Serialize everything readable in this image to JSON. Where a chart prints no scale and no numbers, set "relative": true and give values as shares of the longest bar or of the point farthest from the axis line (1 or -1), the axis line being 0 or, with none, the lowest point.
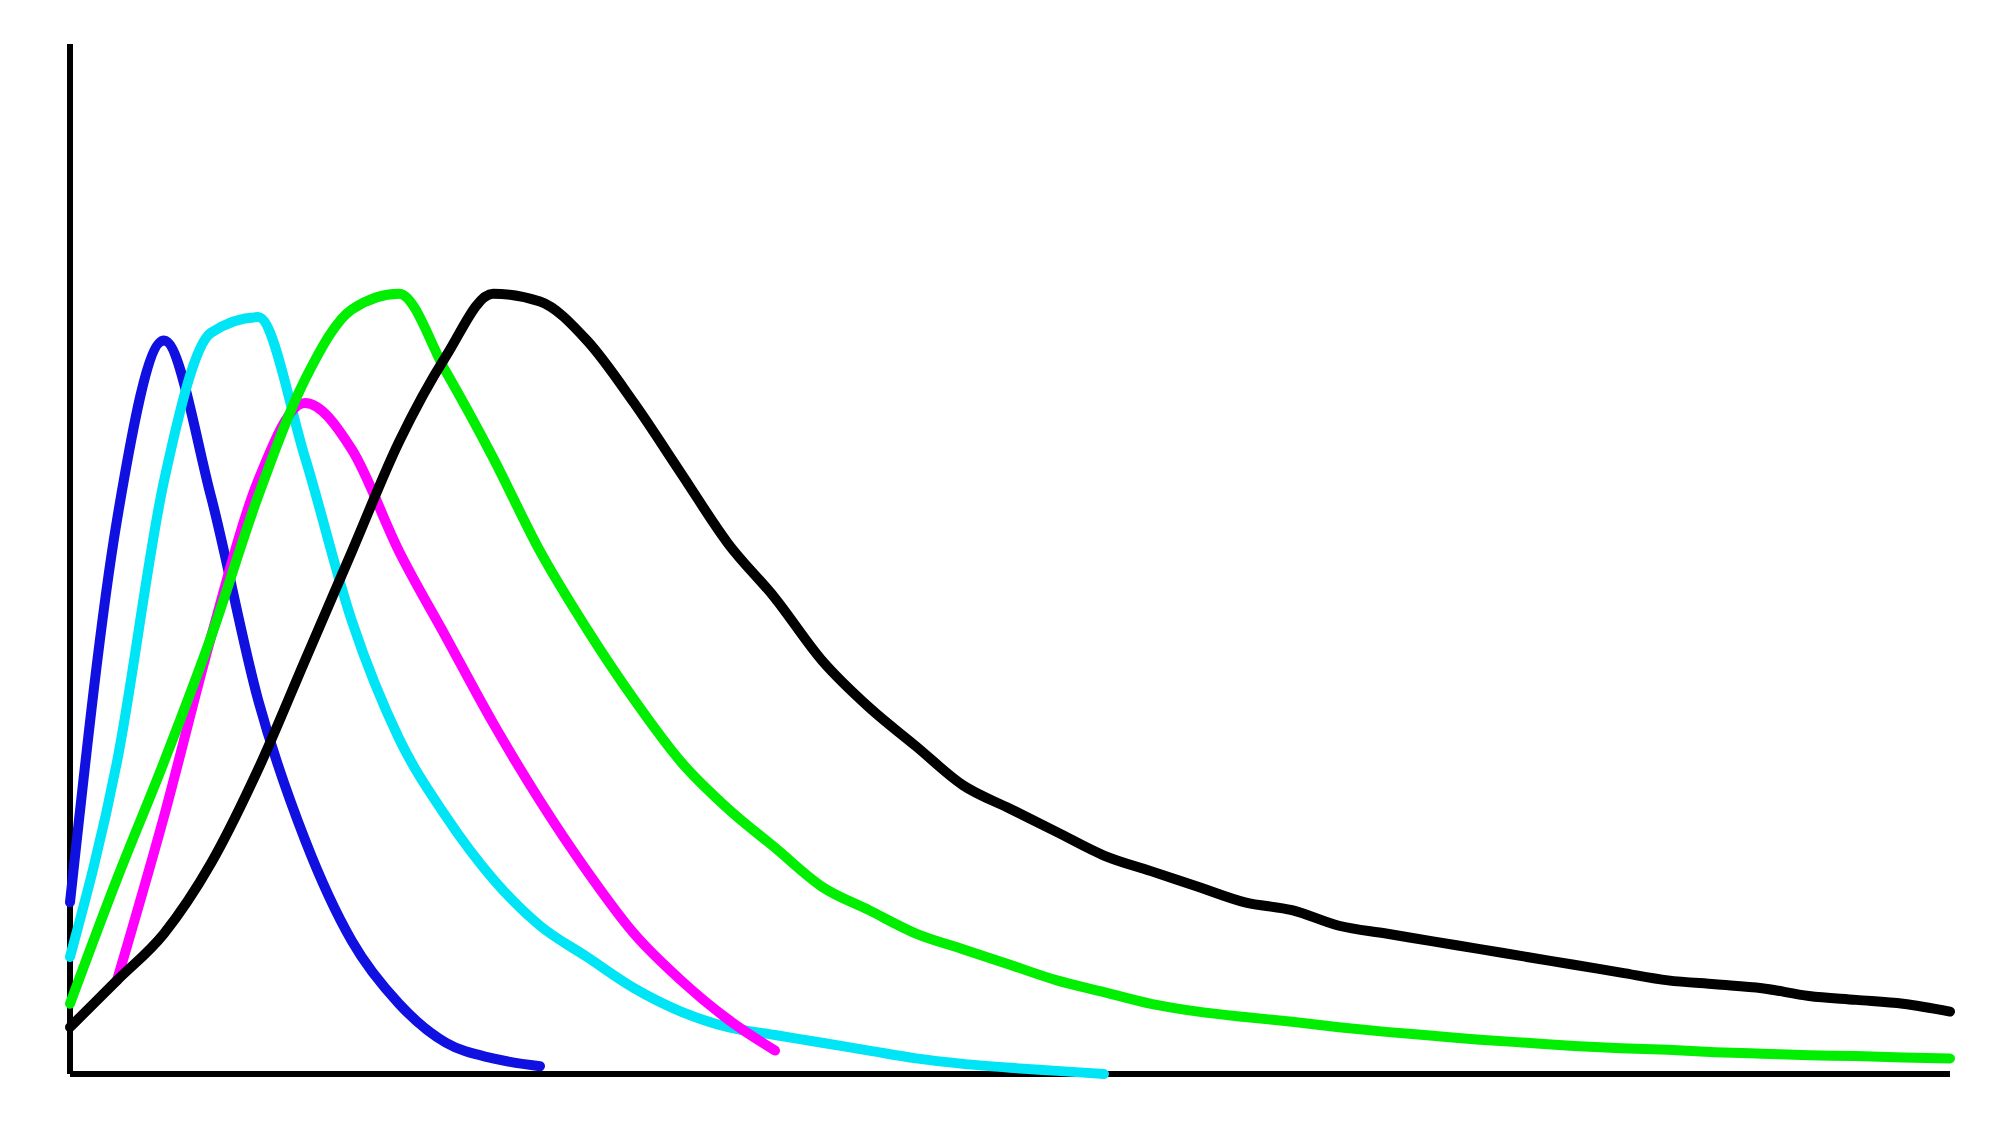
{
  "chart_data": {
    "type": "line",
    "relative": true,
    "tick_labels": false,
    "grid": false,
    "legend": false,
    "line_style": "solid",
    "marker": "none",
    "categories": [
      null,
      null,
      null,
      null,
      null,
      null,
      null,
      null,
      null,
      null,
      null,
      null,
      null,
      null,
      null,
      null,
      null,
      null,
      null,
      null,
      null,
      null,
      null,
      null,
      null,
      null,
      null,
      null,
      null,
      null,
      null,
      null,
      null,
      null,
      null,
      null,
      null,
      null,
      null,
      null,
      null
    ],
    "series": [
      {
        "color": "#1010e0",
        "values": [
          0.22,
          0.71,
          0.94,
          0.74,
          0.48,
          0.3,
          0.17,
          0.09,
          0.04,
          0.02,
          0.01,
          null,
          null,
          null,
          null,
          null,
          null,
          null,
          null,
          null,
          null,
          null,
          null,
          null,
          null,
          null,
          null,
          null,
          null,
          null,
          null,
          null,
          null,
          null,
          null,
          null,
          null,
          null,
          null,
          null,
          null
        ]
      },
      {
        "color": "#00e5f5",
        "values": [
          0.15,
          0.4,
          0.76,
          0.95,
          0.97,
          0.79,
          0.58,
          0.43,
          0.33,
          0.25,
          0.19,
          0.15,
          0.11,
          0.08,
          0.06,
          0.05,
          0.04,
          0.03,
          0.02,
          0.013,
          0.008,
          0.004,
          0,
          null,
          null,
          null,
          null,
          null,
          null,
          null,
          null,
          null,
          null,
          null,
          null,
          null,
          null,
          null,
          null,
          null,
          null
        ]
      },
      {
        "color": "#ff00ff",
        "values": [
          null,
          0.12,
          0.33,
          0.56,
          0.76,
          0.86,
          0.8,
          0.67,
          0.56,
          0.45,
          0.35,
          0.26,
          0.18,
          0.12,
          0.07,
          0.03,
          null,
          null,
          null,
          null,
          null,
          null,
          null,
          null,
          null,
          null,
          null,
          null,
          null,
          null,
          null,
          null,
          null,
          null,
          null,
          null,
          null,
          null,
          null,
          null,
          null
        ]
      },
      {
        "color": "#00ee00",
        "values": [
          0.09,
          0.25,
          0.4,
          0.56,
          0.74,
          0.89,
          0.98,
          1,
          0.9,
          0.79,
          0.67,
          0.57,
          0.48,
          0.4,
          0.34,
          0.29,
          0.24,
          0.21,
          0.18,
          0.16,
          0.14,
          0.12,
          0.105,
          0.09,
          0.08,
          0.073,
          0.067,
          0.06,
          0.054,
          0.049,
          0.044,
          0.04,
          0.036,
          0.033,
          0.031,
          0.028,
          0.026,
          0.024,
          0.023,
          0.021,
          0.02
        ]
      },
      {
        "color": "#000000",
        "values": [
          0.06,
          0.12,
          0.18,
          0.27,
          0.39,
          0.53,
          0.67,
          0.81,
          0.92,
          1,
          0.99,
          0.94,
          0.86,
          0.77,
          0.68,
          0.61,
          0.53,
          0.47,
          0.42,
          0.37,
          0.34,
          0.31,
          0.28,
          0.26,
          0.24,
          0.22,
          0.21,
          0.19,
          0.18,
          0.17,
          0.16,
          0.15,
          0.14,
          0.13,
          0.12,
          0.115,
          0.11,
          0.1,
          0.095,
          0.09,
          0.08
        ]
      }
    ]
  }
}
